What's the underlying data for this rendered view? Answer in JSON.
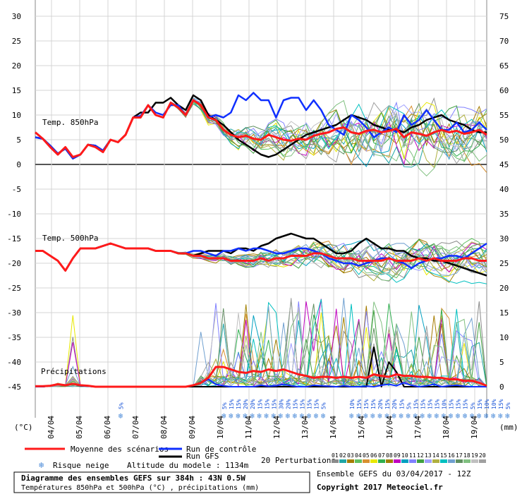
{
  "chart_data": {
    "type": "line",
    "title": "Diagramme des ensembles GEFS sur 384h : 43N 0.5W",
    "subtitle": "Températures 850hPa et 500hPa (°C) , précipitations (mm)",
    "left_axis": {
      "label": "(°C)",
      "ticks": [
        30,
        25,
        20,
        15,
        10,
        5,
        0,
        -5,
        -10,
        -15,
        -20,
        -25,
        -30,
        -35,
        -40,
        -45
      ],
      "range": [
        -45,
        30
      ]
    },
    "right_axis": {
      "label": "(mm)",
      "ticks": [
        75,
        70,
        65,
        60,
        55,
        50,
        45,
        40,
        35,
        30,
        25,
        20,
        15,
        10,
        5,
        0
      ],
      "range": [
        0,
        75
      ]
    },
    "x_labels": [
      "04/04",
      "05/04",
      "06/04",
      "07/04",
      "08/04",
      "09/04",
      "10/04",
      "11/04",
      "12/04",
      "13/04",
      "14/04",
      "15/04",
      "16/04",
      "17/04",
      "18/04",
      "19/04"
    ],
    "panel_labels": {
      "t850": "Temp. 850hPa",
      "t500": "Temp. 500hPa",
      "precip": "Précipitations"
    },
    "snow_risk": {
      "first": {
        "index": 10,
        "pct": "5%"
      },
      "series": [
        "5%",
        "15%",
        "15%",
        "20%",
        "20%",
        "15%",
        "15%",
        "15%",
        "30%",
        "20%",
        "15%",
        "15%",
        "15%",
        "15%",
        "5%",
        "",
        "",
        "",
        "10%",
        "15%",
        "15%",
        "15%",
        "20%",
        "15%",
        "20%",
        "15%",
        "5%",
        "15%",
        "15%",
        "15%",
        "15%",
        "10%",
        "15%",
        "15%",
        "15%",
        "5%",
        "15%",
        "10%",
        "10%",
        "15%",
        "5%"
      ]
    },
    "t850_mean": [
      6.5,
      5.2,
      3.5,
      2,
      3.5,
      1.5,
      2,
      4,
      3.5,
      2.5,
      5,
      4.5,
      6,
      9.5,
      9.5,
      12,
      10,
      9.5,
      12.5,
      11.5,
      10,
      13,
      12,
      9.5,
      9,
      7,
      6,
      5.5,
      5.8,
      5.2,
      5,
      6,
      5.5,
      5,
      4.8,
      5.2,
      5,
      5.8,
      6.2,
      6.5,
      7.2,
      7.5,
      6.5,
      6.2,
      6.8,
      7,
      6.5,
      6.8,
      7.2,
      5.5,
      6.5,
      6.2,
      5.8,
      6.5,
      7,
      6.5,
      6.8,
      6.2,
      6.5,
      7,
      6
    ],
    "t850_control": [
      5.5,
      5.2,
      3.8,
      2.2,
      3.2,
      1.2,
      2,
      4,
      3.8,
      2.8,
      5,
      4.5,
      6,
      9.5,
      9.8,
      12,
      10.5,
      10,
      12,
      12,
      10,
      13,
      12,
      9.5,
      10,
      9.5,
      10.5,
      14,
      13,
      14.5,
      13,
      13,
      9.5,
      13,
      13.5,
      13.5,
      11,
      13,
      11,
      8,
      7,
      6,
      10,
      9,
      7.5,
      5.5,
      6.5,
      7.5,
      6.5,
      10,
      8,
      9,
      11,
      9,
      7,
      7,
      8.5,
      6.5,
      7,
      8.5,
      7
    ],
    "t850_gfs": [
      5.5,
      5.2,
      3.8,
      2.2,
      3.2,
      1.2,
      2,
      4,
      3.8,
      2.8,
      5,
      4.5,
      6,
      9.5,
      10.5,
      10.5,
      12.5,
      12.5,
      13.5,
      12,
      11,
      14,
      13,
      10,
      9,
      8,
      6.5,
      5,
      4,
      3,
      2,
      1.5,
      2,
      3,
      4,
      5,
      6,
      6.5,
      7,
      7.5,
      8,
      9,
      10,
      9.5,
      9,
      8,
      7.5,
      7,
      7,
      6.5,
      7.5,
      8,
      9,
      9.5,
      10,
      9,
      8.5,
      8,
      7,
      6.5,
      6.5
    ],
    "t500_mean": [
      -17.5,
      -17.5,
      -18.5,
      -19.5,
      -21.5,
      -19,
      -17,
      -17,
      -17,
      -16.5,
      -16,
      -16.5,
      -17,
      -17,
      -17,
      -17,
      -17.5,
      -17.5,
      -17.5,
      -18,
      -18,
      -18.5,
      -18.5,
      -19,
      -19,
      -19,
      -19.5,
      -19.5,
      -19.5,
      -19.5,
      -19,
      -19.5,
      -19,
      -19,
      -18.5,
      -18.5,
      -18.5,
      -18,
      -18,
      -18.5,
      -19,
      -19,
      -19,
      -19.5,
      -19.5,
      -19.5,
      -19.5,
      -19,
      -19.5,
      -19.5,
      -19.5,
      -19,
      -19.5,
      -19,
      -19.5,
      -19.5,
      -19.5,
      -19,
      -19,
      -19.5,
      -19.5
    ],
    "t500_control": [
      -17.5,
      -17.5,
      -18.5,
      -19.5,
      -21.5,
      -19,
      -17,
      -17,
      -17,
      -16.5,
      -16,
      -16.5,
      -17,
      -17,
      -17,
      -17,
      -17.5,
      -17.5,
      -17.5,
      -18,
      -18,
      -17.5,
      -17.5,
      -18,
      -18.5,
      -17.5,
      -17.5,
      -17,
      -17.5,
      -17,
      -17,
      -17.5,
      -18,
      -18,
      -17.5,
      -17,
      -17,
      -17.5,
      -18,
      -19,
      -19.5,
      -20,
      -20,
      -20.5,
      -20,
      -19.5,
      -19,
      -19,
      -19.5,
      -20,
      -21,
      -20,
      -19.5,
      -19,
      -19,
      -18.5,
      -18.5,
      -19,
      -18,
      -17,
      -16
    ],
    "t500_gfs": [
      -17.5,
      -17.5,
      -18.5,
      -19.5,
      -21.5,
      -19,
      -17,
      -17,
      -17,
      -16.5,
      -16,
      -16.5,
      -17,
      -17,
      -17,
      -17,
      -17.5,
      -17.5,
      -17.5,
      -18,
      -18,
      -18.5,
      -18,
      -17.5,
      -17.5,
      -17.5,
      -18,
      -17,
      -17,
      -17.5,
      -16.5,
      -16,
      -15,
      -14.5,
      -14,
      -14.5,
      -15,
      -15,
      -16,
      -17,
      -18,
      -18,
      -17.5,
      -16,
      -15,
      -16,
      -17,
      -17,
      -17.5,
      -17.5,
      -18.5,
      -19,
      -19,
      -19.5,
      -19.5,
      -20,
      -20.5,
      -21,
      -21.5,
      -22,
      -22.5
    ],
    "precip_mean": [
      0.1,
      0.1,
      0.2,
      0.5,
      0.3,
      0.6,
      0.3,
      0.2,
      0,
      0,
      0,
      0,
      0,
      0,
      0,
      0,
      0,
      0,
      0,
      0,
      0,
      0.3,
      0.8,
      1.8,
      4,
      4,
      3.5,
      3,
      2.8,
      3.2,
      3,
      3.5,
      3.2,
      3.5,
      3,
      2.5,
      2.2,
      1.8,
      2,
      2,
      1.8,
      2,
      1.8,
      2,
      1.8,
      2.5,
      2.2,
      2,
      2.5,
      2.2,
      2.2,
      2,
      2,
      1.8,
      1.8,
      1.5,
      1.5,
      1.2,
      1.2,
      0.8,
      0.2
    ],
    "precip_control": [
      0,
      0,
      0.2,
      0.5,
      0.3,
      0.6,
      0.2,
      0.1,
      0,
      0,
      0,
      0,
      0,
      0,
      0,
      0,
      0,
      0,
      0,
      0,
      0,
      0.3,
      0.8,
      1.5,
      0.5,
      0.2,
      0,
      0,
      0,
      0,
      0.3,
      0.1,
      0.2,
      0.5,
      0.2,
      0,
      0,
      0.3,
      0.2,
      0.1,
      0,
      0.2,
      0,
      0,
      0.1,
      0,
      0.3,
      0.5,
      0.2,
      0.8,
      0.3,
      0,
      0.2,
      0.5,
      0,
      0.2,
      0.3,
      0.1,
      0,
      0,
      0
    ],
    "precip_gfs": [
      0,
      0,
      0.2,
      0.5,
      0.3,
      0.6,
      0.2,
      0.1,
      0,
      0,
      0,
      0,
      0,
      0,
      0,
      0,
      0,
      0,
      0,
      0,
      0,
      0,
      0,
      0,
      0,
      0,
      0,
      0,
      0,
      0,
      0,
      0,
      0,
      0,
      0,
      0,
      0,
      0,
      0,
      0,
      0,
      0,
      0,
      0,
      0,
      8,
      0,
      5,
      3,
      0,
      0,
      0,
      0,
      0,
      0,
      0,
      0,
      0,
      0,
      0,
      0
    ],
    "legend": {
      "mean": "Moyenne des scénarios",
      "control": "Run de contrôle",
      "gfs": "Run GFS",
      "perturbations": "20 Perturbations",
      "snow": "Risque neige",
      "altitude": "Altitude du modele : 1134m",
      "codes": [
        "01",
        "02",
        "03",
        "04",
        "05",
        "06",
        "07",
        "08",
        "09",
        "10",
        "11",
        "12",
        "13",
        "14",
        "15",
        "16",
        "17",
        "18",
        "19",
        "20"
      ],
      "code_colors": [
        "#8b8b8b",
        "#21a6a6",
        "#a67c00",
        "#60c060",
        "#d89030",
        "#e8e800",
        "#30b050",
        "#a08000",
        "#c000c0",
        "#00a0c0",
        "#8080ff",
        "#40a040",
        "#a0a0ff",
        "#b0b040",
        "#00c0c0",
        "#70a0d0",
        "#609060",
        "#80c080",
        "#c0c0c0",
        "#a0a0a0"
      ]
    },
    "colors": {
      "mean": "#ff1a1a",
      "control": "#0f2fff",
      "gfs": "#000000",
      "zero_line": "#000000"
    },
    "footer": {
      "run_info": "Ensemble GEFS du 03/04/2017 - 12Z",
      "copyright": "Copyright 2017 Meteociel.fr"
    }
  }
}
